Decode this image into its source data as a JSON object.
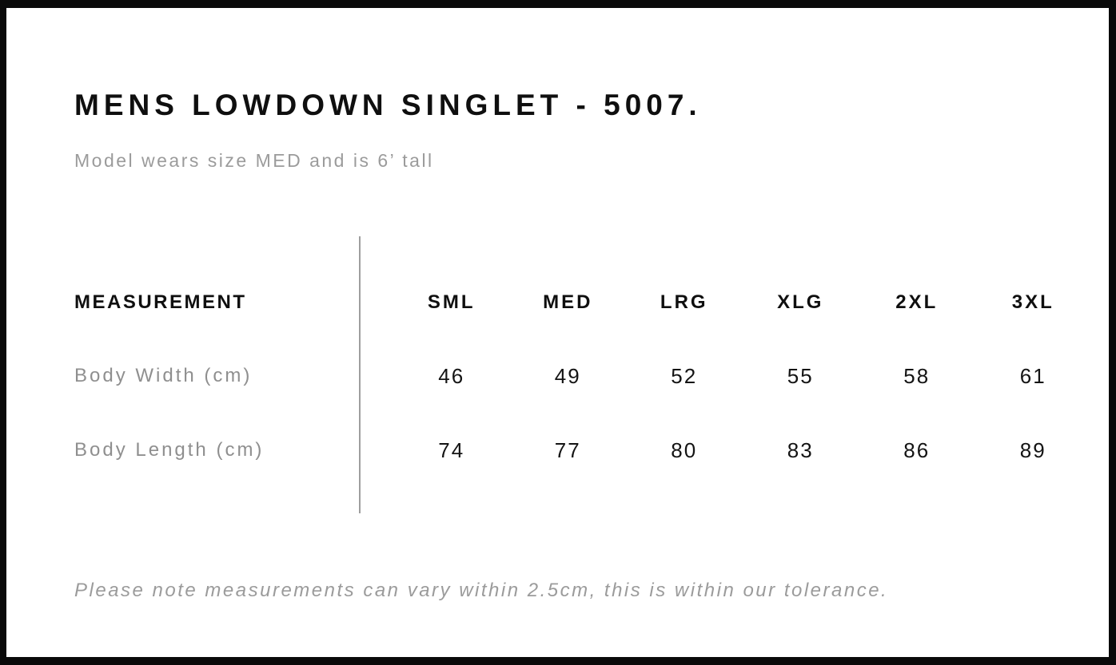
{
  "page": {
    "title": "MENS LOWDOWN SINGLET - 5007.",
    "subtitle": "Model wears size MED and is 6’ tall",
    "note": "Please note measurements can vary within 2.5cm, this is within our tolerance."
  },
  "size_chart": {
    "measurement_header": "MEASUREMENT",
    "sizes": [
      "SML",
      "MED",
      "LRG",
      "XLG",
      "2XL",
      "3XL"
    ],
    "rows": [
      {
        "label": "Body Width (cm)",
        "values": [
          "46",
          "49",
          "52",
          "55",
          "58",
          "61"
        ]
      },
      {
        "label": "Body Length (cm)",
        "values": [
          "74",
          "77",
          "80",
          "83",
          "86",
          "89"
        ]
      }
    ]
  },
  "colors": {
    "frame": "#0a0a0a",
    "text_primary": "#0f0f0f",
    "text_muted": "#9b9b9b",
    "divider": "#9e9e9e",
    "background": "#ffffff"
  }
}
